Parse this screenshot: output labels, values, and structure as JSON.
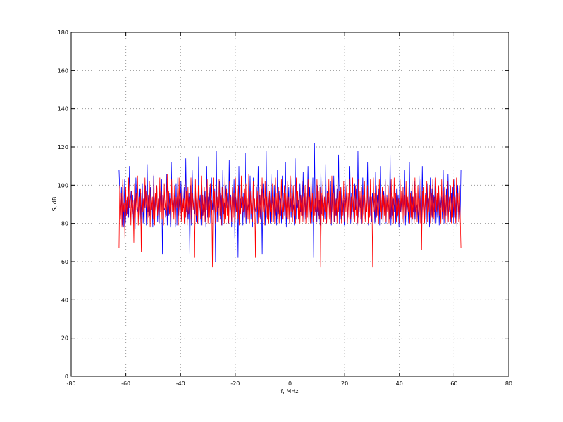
{
  "chart_data": {
    "type": "line",
    "xlabel": "f, MHz",
    "ylabel": "S, dB",
    "xlim": [
      -80,
      80
    ],
    "ylim": [
      0,
      180
    ],
    "xticks": [
      -80,
      -60,
      -40,
      -20,
      0,
      20,
      40,
      60,
      80
    ],
    "yticks": [
      0,
      20,
      40,
      60,
      80,
      100,
      120,
      140,
      160,
      180
    ],
    "grid": true,
    "legend": "none",
    "series": [
      {
        "color": "#0000ff",
        "x_range": [
          -62.5,
          62.5
        ],
        "step": 0.5,
        "values": [
          108,
          96,
          84,
          99,
          79,
          101,
          78,
          103,
          80,
          92,
          85,
          95,
          83,
          110,
          90,
          97,
          88,
          95,
          80,
          93,
          77,
          104,
          91,
          87,
          85,
          98,
          78,
          96,
          82,
          101,
          80,
          92,
          88,
          100,
          79,
          111,
          86,
          95,
          84,
          99,
          90,
          91,
          78,
          105,
          85,
          94,
          86,
          100,
          81,
          92,
          80,
          97,
          89,
          103,
          64,
          95,
          87,
          88,
          83,
          106,
          79,
          100,
          84,
          96,
          78,
          112,
          90,
          89,
          88,
          95,
          78,
          101,
          79,
          104,
          84,
          93,
          85,
          102,
          82,
          90,
          88,
          99,
          76,
          114,
          86,
          92,
          82,
          96,
          64,
          100,
          79,
          108,
          91,
          88,
          85,
          97,
          81,
          93,
          80,
          115,
          88,
          95,
          79,
          102,
          84,
          90,
          86,
          97,
          78,
          110,
          83,
          94,
          90,
          99,
          80,
          104,
          87,
          92,
          84,
          98,
          60,
          118,
          81,
          93,
          88,
          102,
          82,
          95,
          79,
          108,
          85,
          91,
          86,
          100,
          88,
          96,
          80,
          113,
          84,
          95,
          78,
          99,
          86,
          103,
          72,
          94,
          86,
          98,
          62,
          110,
          84,
          93,
          88,
          101,
          79,
          96,
          83,
          117,
          80,
          95,
          87,
          90,
          84,
          105,
          82,
          97,
          78,
          104,
          91,
          88,
          86,
          99,
          80,
          110,
          84,
          95,
          82,
          98,
          64,
          101,
          87,
          93,
          79,
          118,
          83,
          92,
          86,
          96,
          80,
          106,
          88,
          94,
          81,
          100,
          84,
          91,
          79,
          108,
          85,
          97,
          87,
          93,
          80,
          105,
          82,
          96,
          84,
          112,
          78,
          95,
          88,
          99,
          80,
          93,
          83,
          104,
          86,
          90,
          79,
          114,
          82,
          97,
          88,
          92,
          80,
          101,
          86,
          95,
          84,
          107,
          78,
          96,
          82,
          94,
          88,
          110,
          81,
          99,
          84,
          93,
          80,
          104,
          62,
          122,
          86,
          96,
          81,
          100,
          84,
          92,
          79,
          108,
          85,
          95,
          87,
          91,
          82,
          111,
          80,
          97,
          88,
          94,
          83,
          102,
          79,
          96,
          86,
          105,
          81,
          93,
          84,
          98,
          87,
          116,
          80,
          95,
          82,
          99,
          86,
          92,
          79,
          103,
          88,
          97,
          81,
          94,
          84,
          110,
          80,
          96,
          86,
          93,
          82,
          101,
          87,
          98,
          79,
          118,
          83,
          92,
          88,
          95,
          80,
          104,
          85,
          97,
          82,
          91,
          86,
          112,
          79,
          94,
          84,
          100,
          81,
          96,
          88,
          93,
          80,
          107,
          83,
          95,
          86,
          98,
          79,
          110,
          84,
          92,
          81,
          97,
          86,
          103,
          80,
          95,
          88,
          90,
          82,
          116,
          79,
          96,
          84,
          93,
          86,
          100,
          80,
          98,
          83,
          95,
          78,
          106,
          86,
          93,
          81,
          99,
          84,
          108,
          79,
          95,
          87,
          91,
          80,
          112,
          83,
          97,
          78,
          94,
          86,
          102,
          82,
          96,
          88,
          90,
          80,
          105,
          84,
          97,
          79,
          110,
          86,
          94,
          82,
          96,
          80,
          101,
          87,
          93,
          78,
          104,
          84,
          98,
          81,
          95,
          86,
          107,
          80,
          92,
          83,
          99,
          79,
          97,
          88,
          94,
          82,
          108,
          80,
          95,
          84,
          98,
          79,
          106,
          86,
          93,
          81,
          96,
          84,
          99,
          80,
          103,
          83,
          95,
          78,
          100,
          86,
          91,
          82,
          108
        ],
        "y_range": [
          60,
          122
        ]
      },
      {
        "color": "#ff0000",
        "x_range": [
          -62.5,
          62.5
        ],
        "step": 0.5,
        "values": [
          67,
          100,
          82,
          96,
          78,
          103,
          86,
          91,
          72,
          99,
          84,
          94,
          80,
          104,
          88,
          95,
          79,
          97,
          85,
          92,
          70,
          101,
          83,
          96,
          87,
          105,
          79,
          94,
          84,
          98,
          65,
          100,
          86,
          93,
          81,
          104,
          88,
          97,
          80,
          95,
          83,
          102,
          78,
          99,
          87,
          94,
          82,
          106,
          79,
          96,
          85,
          100,
          84,
          93,
          80,
          104,
          86,
          97,
          82,
          95,
          79,
          101,
          87,
          92,
          84,
          106,
          80,
          97,
          85,
          93,
          78,
          103,
          86,
          96,
          82,
          100,
          80,
          94,
          88,
          98,
          79,
          104,
          84,
          96,
          81,
          101,
          86,
          93,
          80,
          106,
          83,
          97,
          79,
          99,
          85,
          94,
          82,
          104,
          80,
          96,
          87,
          93,
          62,
          103,
          84,
          97,
          80,
          100,
          86,
          92,
          82,
          105,
          79,
          95,
          84,
          99,
          81,
          94,
          87,
          103,
          80,
          96,
          83,
          101,
          82,
          92,
          57,
          104,
          85,
          97,
          80,
          100,
          86,
          94,
          81,
          103,
          84,
          96,
          79,
          99,
          86,
          93,
          80,
          106,
          82,
          98,
          84,
          95,
          80,
          102,
          87,
          94,
          81,
          99,
          83,
          96,
          80,
          104,
          86,
          93,
          82,
          100,
          79,
          97,
          85,
          105,
          81,
          94,
          86,
          98,
          80,
          101,
          83,
          93,
          82,
          106,
          80,
          97,
          85,
          95,
          81,
          102,
          84,
          93,
          62,
          101,
          86,
          97,
          80,
          99,
          83,
          95,
          81,
          104,
          86,
          96,
          79,
          102,
          84,
          94,
          82,
          103,
          80,
          97,
          86,
          95,
          81,
          101,
          84,
          94,
          80,
          104,
          86,
          96,
          82,
          99,
          80,
          95,
          84,
          103,
          82,
          93,
          86,
          100,
          80,
          96,
          83,
          102,
          82,
          94,
          80,
          105,
          86,
          96,
          81,
          100,
          84,
          94,
          80,
          104,
          86,
          97,
          82,
          99,
          80,
          95,
          84,
          102,
          81,
          94,
          86,
          100,
          80,
          96,
          83,
          103,
          82,
          94,
          80,
          104,
          86,
          96,
          81,
          100,
          84,
          93,
          80,
          103,
          86,
          97,
          82,
          99,
          57,
          96,
          84,
          102,
          81,
          94,
          86,
          100,
          80,
          96,
          83,
          103,
          82,
          94,
          80,
          105,
          86,
          96,
          81,
          100,
          84,
          93,
          80,
          103,
          86,
          97,
          82,
          99,
          80,
          95,
          84,
          102,
          81,
          94,
          86,
          100,
          80,
          96,
          83,
          103,
          82,
          94,
          80,
          104,
          86,
          96,
          81,
          100,
          84,
          93,
          80,
          103,
          86,
          97,
          82,
          99,
          80,
          95,
          84,
          102,
          81,
          94,
          86,
          100,
          80,
          96,
          83,
          103,
          82,
          94,
          57,
          104,
          86,
          96,
          81,
          100,
          84,
          93,
          80,
          103,
          86,
          97,
          82,
          99,
          80,
          95,
          84,
          102,
          81,
          94,
          86,
          100,
          80,
          96,
          83,
          103,
          82,
          94,
          80,
          104,
          86,
          96,
          81,
          100,
          84,
          93,
          80,
          103,
          86,
          97,
          82,
          99,
          80,
          95,
          84,
          102,
          81,
          94,
          86,
          100,
          80,
          96,
          83,
          103,
          82,
          94,
          80,
          104,
          86,
          96,
          81,
          100,
          84,
          93,
          80,
          103,
          66,
          97,
          82,
          99,
          80,
          95,
          84,
          102,
          81,
          94,
          86,
          100,
          80,
          96,
          83,
          103,
          82,
          94,
          80,
          104,
          86,
          96,
          81,
          100,
          84,
          93,
          80,
          103,
          86,
          97,
          82,
          99,
          80,
          95,
          84,
          102,
          81,
          94,
          86,
          100,
          80,
          96,
          83,
          103,
          82,
          94,
          80,
          104,
          86,
          96,
          81,
          100,
          84,
          67
        ],
        "y_range": [
          57,
          106
        ]
      }
    ]
  }
}
